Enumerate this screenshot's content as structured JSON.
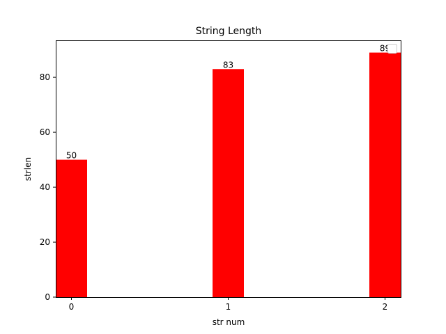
{
  "chart_data": {
    "type": "bar",
    "title": "String Length",
    "xlabel": "str num",
    "ylabel": "strlen",
    "categories": [
      "0",
      "1",
      "2"
    ],
    "x": [
      0,
      1,
      2
    ],
    "values": [
      50,
      83,
      89
    ],
    "data_labels": [
      "50",
      "83",
      "89"
    ],
    "xlim": [
      -0.1,
      2.1
    ],
    "ylim": [
      0,
      93.45
    ],
    "yticks": [
      0,
      20,
      40,
      60,
      80
    ],
    "ytick_labels": [
      "0",
      "20",
      "40",
      "60",
      "80"
    ],
    "bar_color": "#ff0000",
    "grid": false,
    "legend": {
      "placement": "top-right",
      "entries": []
    }
  }
}
